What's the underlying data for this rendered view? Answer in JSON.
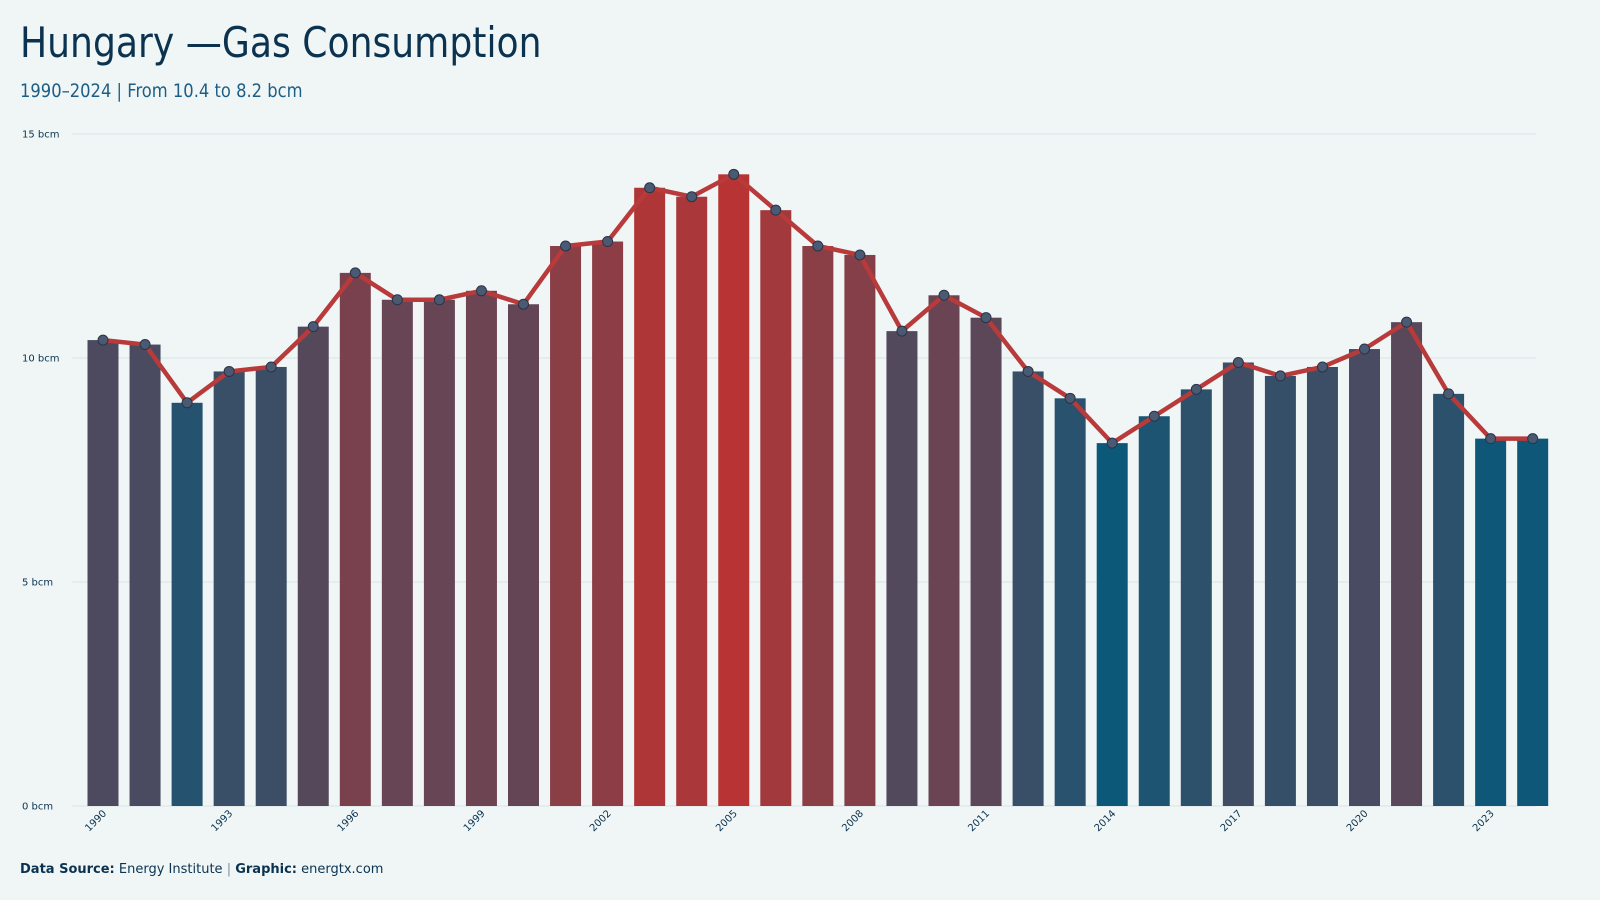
{
  "header": {
    "title": "Hungary —Gas Consumption",
    "subtitle": "1990–2024 | From 10.4 to 8.2 bcm"
  },
  "footer": {
    "source_label": "Data Source:",
    "source_value": "Energy Institute",
    "separator": "|",
    "graphic_label": "Graphic:",
    "graphic_value": "energtx.com"
  },
  "colors": {
    "background": "#f0f6f6",
    "line": "#b83a3a",
    "marker_fill": "#4a5a73",
    "marker_stroke": "#2a3348",
    "low": "#0b5879",
    "high": "#b83434",
    "grid": "#d8e2e6"
  },
  "chart_data": {
    "type": "bar",
    "title": "Hungary —Gas Consumption",
    "subtitle": "1990–2024 | From 10.4 to 8.2 bcm",
    "xlabel": "",
    "ylabel": "",
    "unit": "bcm",
    "ylim": [
      0,
      15
    ],
    "y_ticks": [
      0,
      5,
      10,
      15
    ],
    "y_tick_labels": [
      "0 bcm",
      "5 bcm",
      "10 bcm",
      "15 bcm"
    ],
    "grid": true,
    "legend": "none",
    "x_tick_labels": [
      "1990",
      "1993",
      "1996",
      "1999",
      "2002",
      "2005",
      "2008",
      "2011",
      "2014",
      "2017",
      "2020",
      "2023"
    ],
    "categories": [
      1990,
      1991,
      1992,
      1993,
      1994,
      1995,
      1996,
      1997,
      1998,
      1999,
      2000,
      2001,
      2002,
      2003,
      2004,
      2005,
      2006,
      2007,
      2008,
      2009,
      2010,
      2011,
      2012,
      2013,
      2014,
      2015,
      2016,
      2017,
      2018,
      2019,
      2020,
      2021,
      2022,
      2023,
      2024
    ],
    "series": [
      {
        "type": "bar+line",
        "values": [
          10.4,
          10.3,
          9.0,
          9.7,
          9.8,
          10.7,
          11.9,
          11.3,
          11.3,
          11.5,
          11.2,
          12.5,
          12.6,
          13.8,
          13.6,
          14.1,
          13.3,
          12.5,
          12.3,
          10.6,
          11.4,
          10.9,
          9.7,
          9.1,
          8.1,
          8.7,
          9.3,
          9.9,
          9.6,
          9.8,
          10.2,
          10.8,
          9.2,
          8.2,
          8.2
        ]
      }
    ]
  }
}
